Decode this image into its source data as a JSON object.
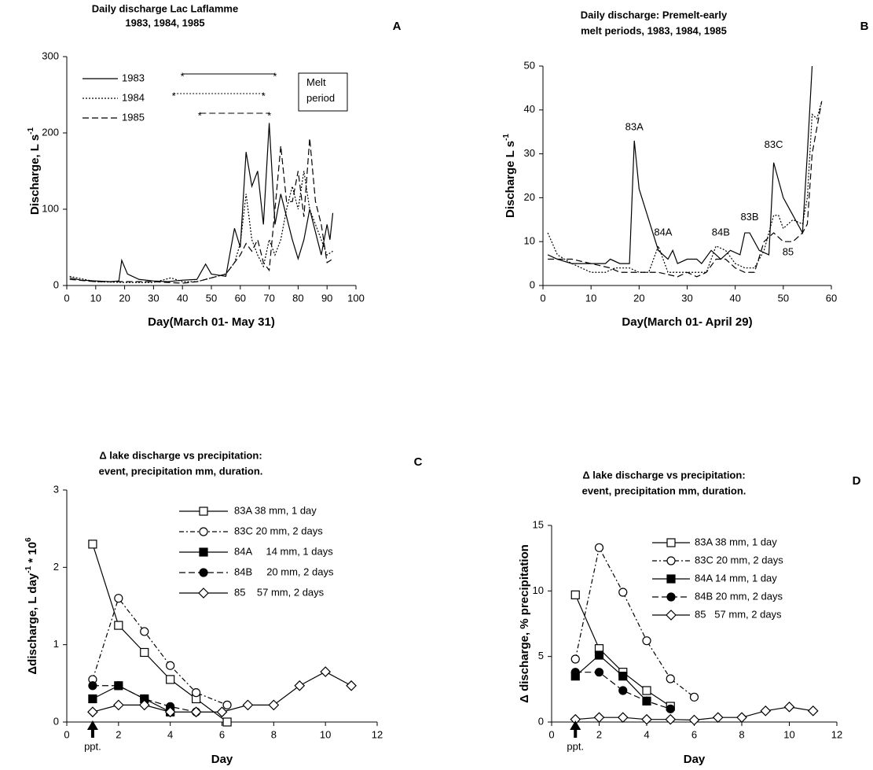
{
  "chart_data": [
    {
      "type": "line",
      "panel": "A",
      "title": [
        "Daily discharge Lac Laflamme",
        "1983, 1984, 1985"
      ],
      "xlabel": [
        "Day(March 01- May 31)"
      ],
      "ylabel": [
        "Discharge, L s",
        "-1"
      ],
      "xlim": [
        0,
        100
      ],
      "xticks": [
        0,
        10,
        20,
        30,
        40,
        50,
        60,
        70,
        80,
        90,
        100
      ],
      "ylim": [
        0,
        300
      ],
      "yticks": [
        0,
        100,
        200,
        300
      ],
      "note": "Melt\nperiod",
      "series": [
        {
          "name": "1983",
          "color": "#000",
          "line_style": "solid",
          "melt_period": [
            40,
            72
          ],
          "x": [
            1,
            5,
            10,
            15,
            18,
            19,
            21,
            25,
            30,
            35,
            40,
            45,
            48,
            50,
            55,
            58,
            60,
            62,
            64,
            66,
            68,
            70,
            72,
            74,
            76,
            78,
            80,
            82,
            84,
            86,
            88,
            90,
            91,
            92
          ],
          "values": [
            10,
            7,
            6,
            5,
            6,
            33,
            15,
            8,
            6,
            5,
            7,
            8,
            28,
            15,
            12,
            75,
            50,
            175,
            130,
            150,
            80,
            213,
            80,
            120,
            90,
            60,
            35,
            60,
            100,
            70,
            40,
            80,
            60,
            95
          ]
        },
        {
          "name": "1984",
          "color": "#000",
          "line_style": "dotted",
          "melt_period": [
            37,
            68
          ],
          "x": [
            1,
            10,
            20,
            30,
            36,
            40,
            45,
            50,
            55,
            58,
            60,
            62,
            64,
            66,
            68,
            70,
            72,
            74,
            76,
            78,
            80,
            82,
            84,
            86,
            88,
            90,
            92
          ],
          "values": [
            12,
            5,
            4,
            4,
            10,
            5,
            5,
            10,
            15,
            30,
            55,
            120,
            60,
            40,
            25,
            60,
            40,
            60,
            100,
            130,
            100,
            150,
            100,
            80,
            60,
            40,
            45
          ]
        },
        {
          "name": "1985",
          "color": "#000",
          "line_style": "dashed",
          "melt_period": [
            46,
            70
          ],
          "x": [
            1,
            10,
            20,
            30,
            40,
            45,
            50,
            55,
            58,
            60,
            62,
            64,
            66,
            68,
            70,
            72,
            74,
            76,
            78,
            80,
            82,
            84,
            86,
            88,
            90,
            92
          ],
          "values": [
            8,
            5,
            5,
            5,
            3,
            5,
            10,
            15,
            30,
            40,
            55,
            45,
            60,
            30,
            20,
            100,
            183,
            110,
            110,
            150,
            90,
            193,
            110,
            80,
            30,
            35
          ]
        }
      ]
    },
    {
      "type": "line",
      "panel": "B",
      "title": [
        "Daily discharge: Premelt-early",
        "melt periods, 1983, 1984, 1985"
      ],
      "xlabel": [
        "Day(March 01- April 29)"
      ],
      "ylabel": [
        "Discharge L s",
        "-1"
      ],
      "xlim": [
        0,
        60
      ],
      "xticks": [
        0,
        10,
        20,
        30,
        40,
        50,
        60
      ],
      "ylim": [
        0,
        50
      ],
      "yticks": [
        0,
        10,
        20,
        30,
        40,
        50
      ],
      "annotations": [
        {
          "text": "83A",
          "x": 19,
          "y": 36
        },
        {
          "text": "84A",
          "x": 25,
          "y": 12
        },
        {
          "text": "84B",
          "x": 37,
          "y": 12
        },
        {
          "text": "83B",
          "x": 43,
          "y": 15.5
        },
        {
          "text": "83C",
          "x": 48,
          "y": 32
        },
        {
          "text": "85",
          "x": 51,
          "y": 7.5
        }
      ],
      "series": [
        {
          "name": "1983",
          "color": "#000",
          "line_style": "solid",
          "x": [
            1,
            3,
            6,
            10,
            13,
            14,
            16,
            18,
            19,
            20,
            22,
            24,
            26,
            27,
            28,
            30,
            32,
            33,
            35,
            37,
            39,
            41,
            42,
            43,
            45,
            47,
            48,
            50,
            52,
            54,
            55,
            56
          ],
          "values": [
            7,
            6,
            5,
            5,
            5,
            6,
            5,
            5,
            33,
            22,
            15,
            8,
            6,
            8,
            5,
            6,
            6,
            5,
            8,
            6,
            8,
            7,
            12,
            12,
            8,
            7,
            28,
            20,
            16,
            12,
            30,
            50
          ]
        },
        {
          "name": "1984",
          "color": "#000",
          "line_style": "dotted",
          "x": [
            1,
            3,
            6,
            10,
            13,
            15,
            18,
            20,
            22,
            24,
            26,
            28,
            30,
            34,
            36,
            38,
            40,
            42,
            44,
            46,
            48,
            49,
            50,
            52,
            54,
            55,
            56,
            57,
            58
          ],
          "values": [
            12,
            7,
            5,
            3,
            3,
            4,
            4,
            3,
            3,
            9,
            3,
            3,
            3,
            3,
            9,
            8,
            5,
            4,
            4,
            8,
            16,
            16,
            13,
            15,
            14,
            20,
            39,
            38,
            42
          ]
        },
        {
          "name": "1985",
          "color": "#000",
          "line_style": "dashed",
          "x": [
            1,
            3,
            6,
            10,
            14,
            16,
            20,
            24,
            28,
            30,
            32,
            34,
            36,
            38,
            40,
            42,
            44,
            46,
            48,
            50,
            52,
            54,
            55,
            56,
            58
          ],
          "values": [
            6,
            6,
            6,
            5,
            4,
            3,
            3,
            3,
            2,
            3,
            2,
            3,
            6,
            6,
            4,
            3,
            3,
            10,
            12,
            10,
            10,
            12,
            14,
            30,
            42
          ]
        }
      ]
    },
    {
      "type": "line",
      "panel": "C",
      "title": [
        "Δ lake discharge vs precipitation:",
        "event, precipitation mm, duration."
      ],
      "xlabel": [
        "Day"
      ],
      "ylabel": [
        "Δdischarge, L day",
        "-1",
        " * 10",
        "6"
      ],
      "xlim": [
        0,
        12
      ],
      "xticks": [
        0,
        2,
        4,
        6,
        8,
        10,
        12
      ],
      "ylim": [
        0,
        3
      ],
      "yticks": [
        0,
        1,
        2,
        3
      ],
      "annotations": [
        {
          "text": "ppt.",
          "x": 1
        }
      ],
      "series": [
        {
          "name": "83A 38 mm, 1 day",
          "color": "#000",
          "line_style": "solid",
          "marker": "square",
          "filled": false,
          "x": [
            1,
            2,
            3,
            4,
            5,
            6.2
          ],
          "values": [
            2.3,
            1.25,
            0.9,
            0.55,
            0.3,
            0
          ]
        },
        {
          "name": "83C 20 mm, 2 days",
          "color": "#000",
          "line_style": "dashdot",
          "marker": "circle",
          "filled": false,
          "x": [
            1,
            2,
            3,
            4,
            5,
            6.2
          ],
          "values": [
            0.55,
            1.6,
            1.17,
            0.73,
            0.38,
            0.22
          ]
        },
        {
          "name": "84A     14 mm, 1 days",
          "color": "#000",
          "line_style": "solid",
          "marker": "square",
          "filled": true,
          "x": [
            1,
            2,
            3,
            4
          ],
          "values": [
            0.3,
            0.47,
            0.3,
            0.13
          ]
        },
        {
          "name": "84B     20 mm, 2 days",
          "color": "#000",
          "line_style": "dashed",
          "marker": "circle",
          "filled": true,
          "x": [
            1,
            2,
            3,
            4,
            5
          ],
          "values": [
            0.47,
            0.47,
            0.3,
            0.2,
            0.13
          ]
        },
        {
          "name": "85    57 mm, 2 days",
          "color": "#000",
          "line_style": "solid",
          "marker": "diamond",
          "filled": false,
          "x": [
            1,
            2,
            3,
            4,
            5,
            6,
            7,
            8,
            9,
            10,
            11
          ],
          "values": [
            0.13,
            0.22,
            0.22,
            0.13,
            0.13,
            0.13,
            0.22,
            0.22,
            0.47,
            0.65,
            0.47
          ]
        }
      ]
    },
    {
      "type": "line",
      "panel": "D",
      "title": [
        "Δ lake discharge vs precipitation:",
        "event, precipitation mm, duration."
      ],
      "xlabel": [
        "Day"
      ],
      "ylabel": [
        "Δ discharge, % precipitation"
      ],
      "xlim": [
        0,
        12
      ],
      "xticks": [
        0,
        2,
        4,
        6,
        8,
        10,
        12
      ],
      "ylim": [
        0,
        15
      ],
      "yticks": [
        0,
        5,
        10,
        15
      ],
      "annotations": [
        {
          "text": "ppt.",
          "x": 1
        }
      ],
      "series": [
        {
          "name": "83A 38 mm, 1 day",
          "color": "#000",
          "line_style": "solid",
          "marker": "square",
          "filled": false,
          "x": [
            1,
            2,
            3,
            4,
            5
          ],
          "values": [
            9.7,
            5.6,
            3.8,
            2.4,
            1.2
          ]
        },
        {
          "name": "83C 20 mm, 2 days",
          "color": "#000",
          "line_style": "dashdot",
          "marker": "circle",
          "filled": false,
          "x": [
            1,
            2,
            3,
            4,
            5,
            6
          ],
          "values": [
            4.8,
            13.3,
            9.9,
            6.2,
            3.3,
            1.9
          ]
        },
        {
          "name": "84A 14 mm, 1 day",
          "color": "#000",
          "line_style": "solid",
          "marker": "square",
          "filled": true,
          "x": [
            1,
            2,
            3,
            4
          ],
          "values": [
            3.5,
            5.1,
            3.5,
            1.6
          ]
        },
        {
          "name": "84B 20 mm, 2 days",
          "color": "#000",
          "line_style": "dashed",
          "marker": "circle",
          "filled": true,
          "x": [
            1,
            2,
            3,
            4,
            5
          ],
          "values": [
            3.8,
            3.8,
            2.4,
            1.6,
            1.0
          ]
        },
        {
          "name": "85   57 mm, 2 days",
          "color": "#000",
          "line_style": "solid",
          "marker": "diamond",
          "filled": false,
          "x": [
            1,
            2,
            3,
            4,
            5,
            6,
            7,
            8,
            9,
            10,
            11
          ],
          "values": [
            0.2,
            0.35,
            0.35,
            0.2,
            0.2,
            0.15,
            0.35,
            0.35,
            0.85,
            1.15,
            0.85
          ]
        }
      ]
    }
  ]
}
